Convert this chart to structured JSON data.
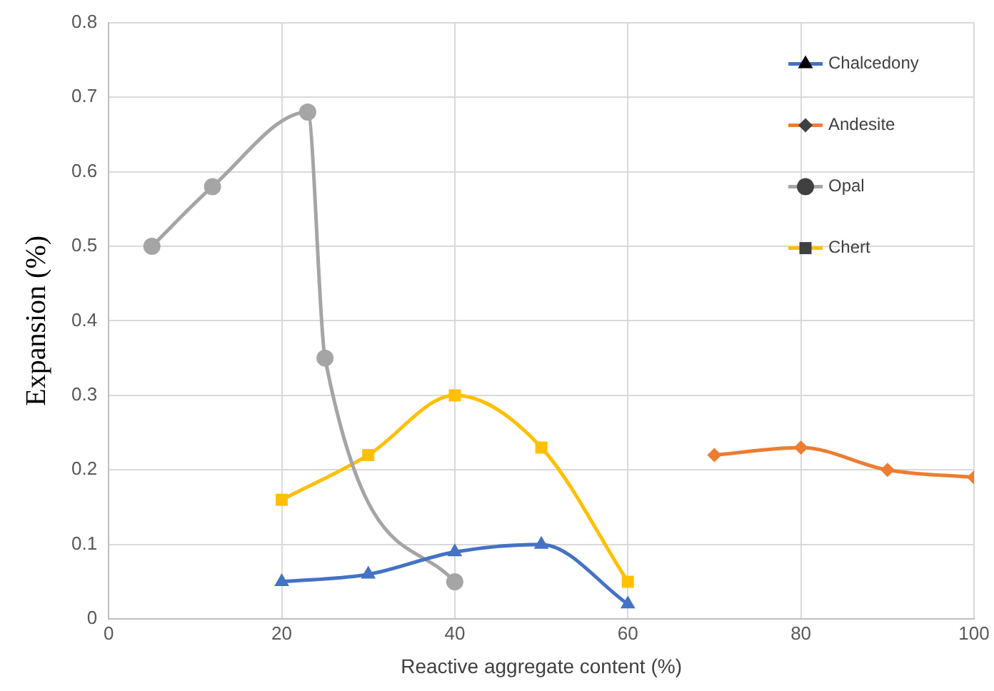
{
  "chart_data": {
    "type": "line",
    "xlabel": "Reactive aggregate content (%)",
    "ylabel": "Expansion (%)",
    "xlim": [
      0,
      100
    ],
    "xticks": [
      0,
      20,
      40,
      60,
      80,
      100
    ],
    "ylim": [
      0,
      0.8
    ],
    "yticks": [
      0,
      0.1,
      0.2,
      0.3,
      0.4,
      0.5,
      0.6,
      0.7,
      0.8
    ],
    "grid": true,
    "legend": "top right",
    "line_style": "solid",
    "series": [
      {
        "name": "Chalcedony",
        "color": "#4472c4",
        "marker": "triangle",
        "x": [
          20,
          30,
          40,
          50,
          60
        ],
        "values": [
          0.05,
          0.06,
          0.09,
          0.1,
          0.02
        ]
      },
      {
        "name": "Andesite",
        "color": "#ed7d31",
        "marker": "diamond",
        "x": [
          70,
          80,
          90,
          100
        ],
        "values": [
          0.22,
          0.23,
          0.2,
          0.19
        ]
      },
      {
        "name": "Opal",
        "color": "#a5a5a5",
        "marker": "circle",
        "x": [
          5,
          12,
          23,
          25,
          40
        ],
        "values": [
          0.5,
          0.58,
          0.68,
          0.35,
          0.05
        ]
      },
      {
        "name": "Chert",
        "color": "#ffc000",
        "marker": "square",
        "x": [
          20,
          30,
          40,
          50,
          60
        ],
        "values": [
          0.16,
          0.22,
          0.3,
          0.23,
          0.05
        ]
      }
    ]
  }
}
